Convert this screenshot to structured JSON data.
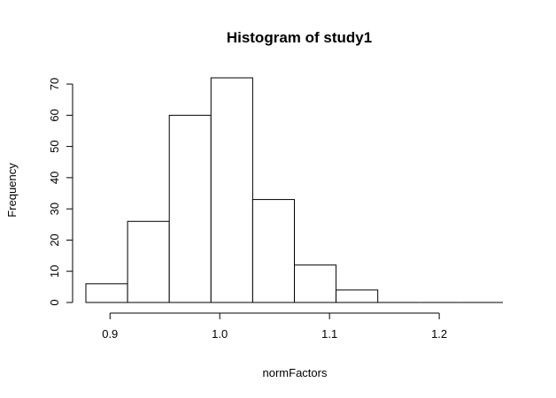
{
  "chart_data": {
    "type": "bar",
    "title": "Histogram of study1",
    "xlabel": "normFactors",
    "ylabel": "Frequency",
    "bins": [
      {
        "start": 0.878,
        "end": 0.916,
        "count": 6
      },
      {
        "start": 0.916,
        "end": 0.954,
        "count": 26
      },
      {
        "start": 0.954,
        "end": 0.992,
        "count": 60
      },
      {
        "start": 0.992,
        "end": 1.03,
        "count": 72
      },
      {
        "start": 1.03,
        "end": 1.068,
        "count": 33
      },
      {
        "start": 1.068,
        "end": 1.106,
        "count": 12
      },
      {
        "start": 1.106,
        "end": 1.144,
        "count": 4
      },
      {
        "start": 1.144,
        "end": 1.182,
        "count": 0
      },
      {
        "start": 1.182,
        "end": 1.22,
        "count": 0
      },
      {
        "start": 1.22,
        "end": 1.258,
        "count": 0
      }
    ],
    "x_ticks": [
      "0.9",
      "1.0",
      "1.1",
      "1.2"
    ],
    "y_ticks": [
      "0",
      "10",
      "20",
      "30",
      "40",
      "50",
      "60",
      "70"
    ],
    "xlim": [
      0.878,
      1.258
    ],
    "ylim": [
      0,
      72
    ],
    "grid": false,
    "colors": {
      "bar_fill": "#ffffff",
      "bar_stroke": "#000000"
    }
  }
}
